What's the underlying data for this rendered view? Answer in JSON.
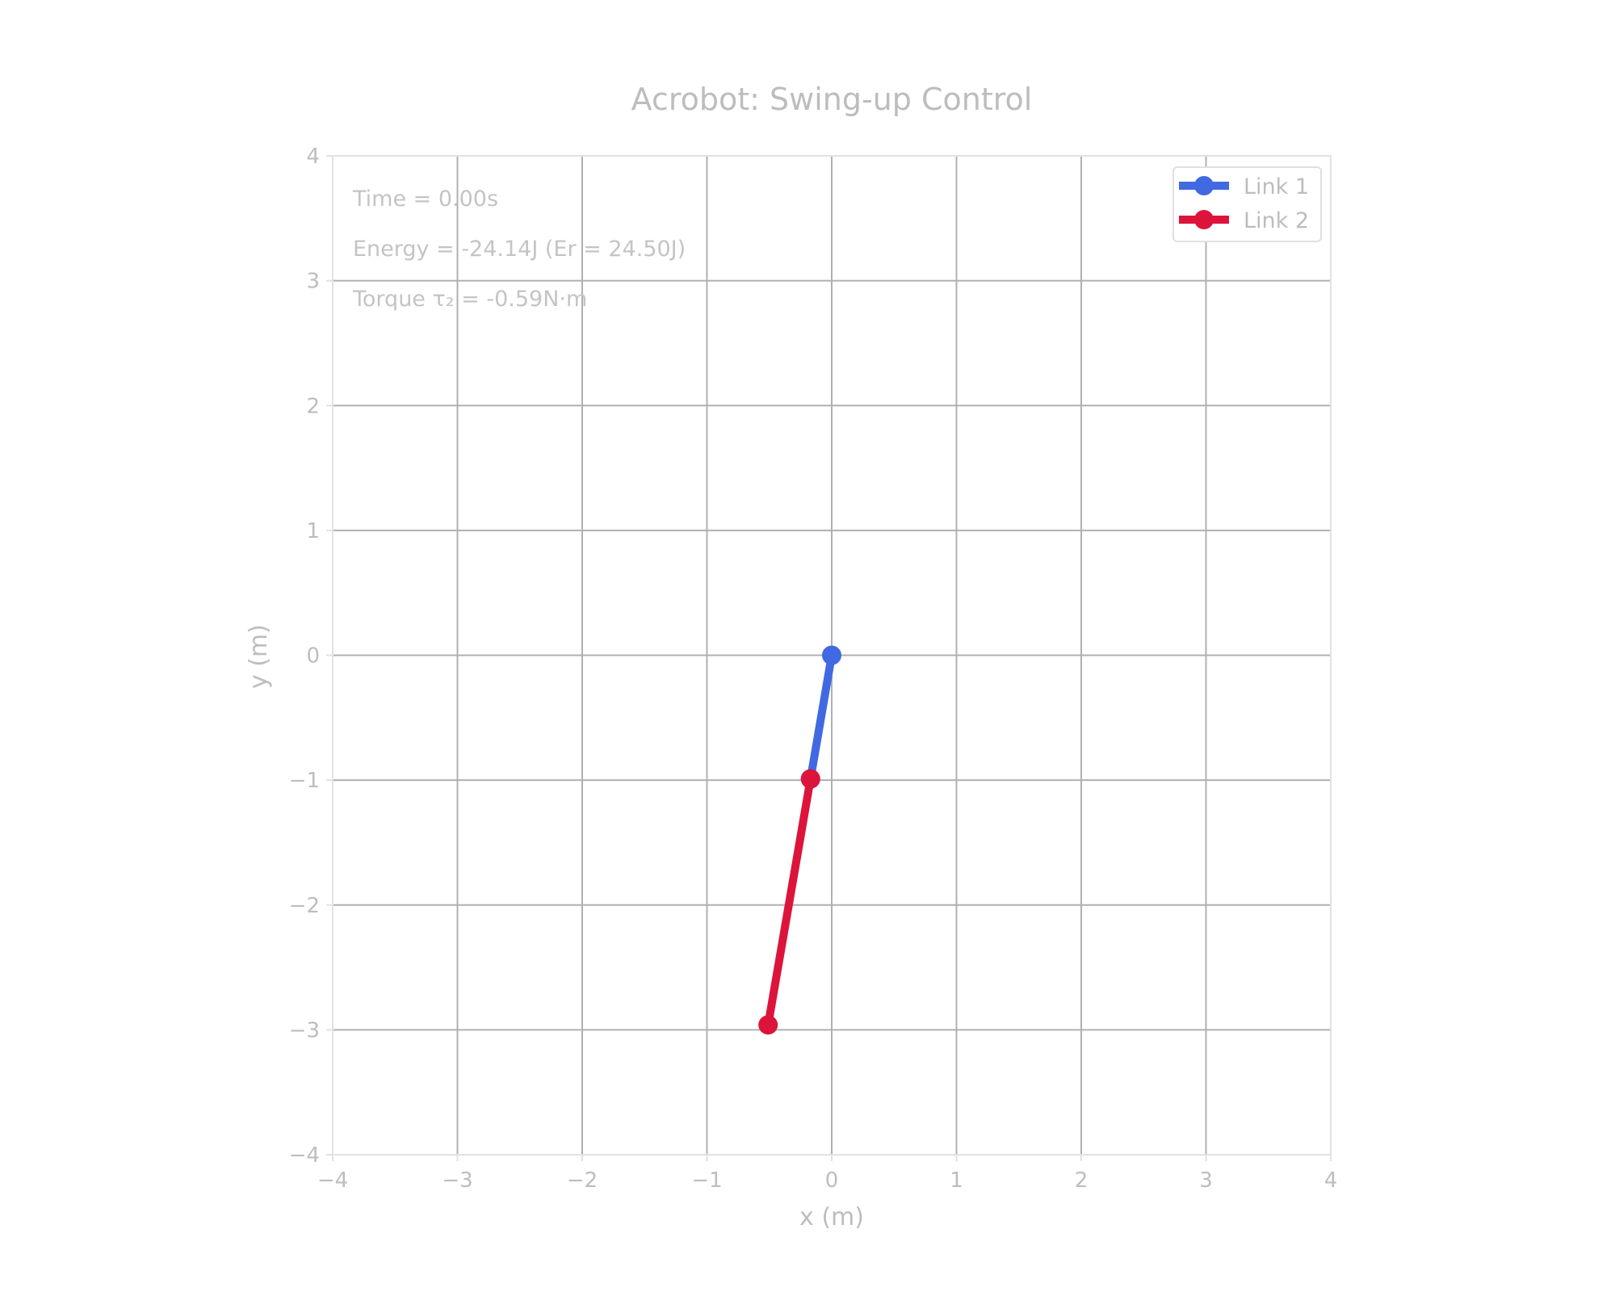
{
  "chart_data": {
    "type": "line",
    "title": "Acrobot: Swing-up Control",
    "xlabel": "x (m)",
    "ylabel": "y (m)",
    "xlim": [
      -4,
      4
    ],
    "ylim": [
      -4,
      4
    ],
    "x_ticks": [
      -4,
      -3,
      -2,
      -1,
      0,
      1,
      2,
      3,
      4
    ],
    "y_ticks": [
      -4,
      -3,
      -2,
      -1,
      0,
      1,
      2,
      3,
      4
    ],
    "x_tick_labels": [
      "−4",
      "−3",
      "−2",
      "−1",
      "0",
      "1",
      "2",
      "3",
      "4"
    ],
    "y_tick_labels": [
      "−4",
      "−3",
      "−2",
      "−1",
      "0",
      "1",
      "2",
      "3",
      "4"
    ],
    "grid": true,
    "legend_position": "top-right",
    "series": [
      {
        "name": "Link 1",
        "color": "#4169e1",
        "x": [
          0.0,
          -0.17
        ],
        "y": [
          0.0,
          -0.99
        ]
      },
      {
        "name": "Link 2",
        "color": "#dc143c",
        "x": [
          -0.17,
          -0.51
        ],
        "y": [
          -0.99,
          -2.96
        ]
      }
    ],
    "annotations": [
      "Time = 0.00s",
      "Energy = -24.14J (Er = 24.50J)",
      "Torque τ₂ = -0.59N·m"
    ]
  }
}
